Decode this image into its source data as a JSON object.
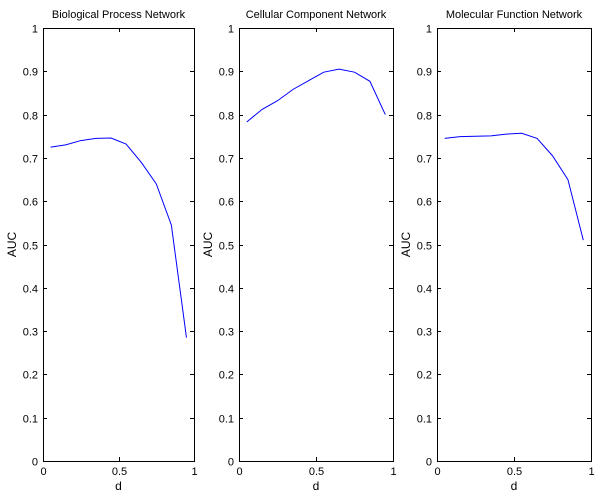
{
  "chart_data": [
    {
      "type": "line",
      "title": "Biological Process Network",
      "xlabel": "d",
      "ylabel": "AUC",
      "xlim": [
        0,
        1
      ],
      "ylim": [
        0,
        1
      ],
      "xticks": [
        "0",
        "0.5",
        "1"
      ],
      "yticks": [
        "0",
        "0.1",
        "0.2",
        "0.3",
        "0.4",
        "0.5",
        "0.6",
        "0.7",
        "0.8",
        "0.9",
        "1"
      ],
      "series": [
        {
          "color": "#0000ff",
          "x": [
            0.05,
            0.15,
            0.25,
            0.35,
            0.45,
            0.55,
            0.65,
            0.75,
            0.85,
            0.95
          ],
          "y": [
            0.725,
            0.73,
            0.74,
            0.745,
            0.746,
            0.732,
            0.69,
            0.64,
            0.545,
            0.285
          ]
        }
      ]
    },
    {
      "type": "line",
      "title": "Cellular Component Network",
      "xlabel": "d",
      "ylabel": "AUC",
      "xlim": [
        0,
        1
      ],
      "ylim": [
        0,
        1
      ],
      "xticks": [
        "0",
        "0.5",
        "1"
      ],
      "yticks": [
        "0",
        "0.1",
        "0.2",
        "0.3",
        "0.4",
        "0.5",
        "0.6",
        "0.7",
        "0.8",
        "0.9",
        "1"
      ],
      "series": [
        {
          "color": "#0000ff",
          "x": [
            0.05,
            0.15,
            0.25,
            0.35,
            0.45,
            0.55,
            0.65,
            0.75,
            0.85,
            0.95
          ],
          "y": [
            0.783,
            0.812,
            0.832,
            0.858,
            0.878,
            0.898,
            0.905,
            0.898,
            0.877,
            0.8
          ]
        }
      ]
    },
    {
      "type": "line",
      "title": "Molecular Function Network",
      "xlabel": "d",
      "ylabel": "AUC",
      "xlim": [
        0,
        1
      ],
      "ylim": [
        0,
        1
      ],
      "xticks": [
        "0",
        "0.5",
        "1"
      ],
      "yticks": [
        "0",
        "0.1",
        "0.2",
        "0.3",
        "0.4",
        "0.5",
        "0.6",
        "0.7",
        "0.8",
        "0.9",
        "1"
      ],
      "series": [
        {
          "color": "#0000ff",
          "x": [
            0.05,
            0.15,
            0.25,
            0.35,
            0.45,
            0.55,
            0.65,
            0.75,
            0.85,
            0.95
          ],
          "y": [
            0.745,
            0.749,
            0.75,
            0.751,
            0.755,
            0.757,
            0.745,
            0.705,
            0.65,
            0.51
          ]
        }
      ]
    }
  ]
}
